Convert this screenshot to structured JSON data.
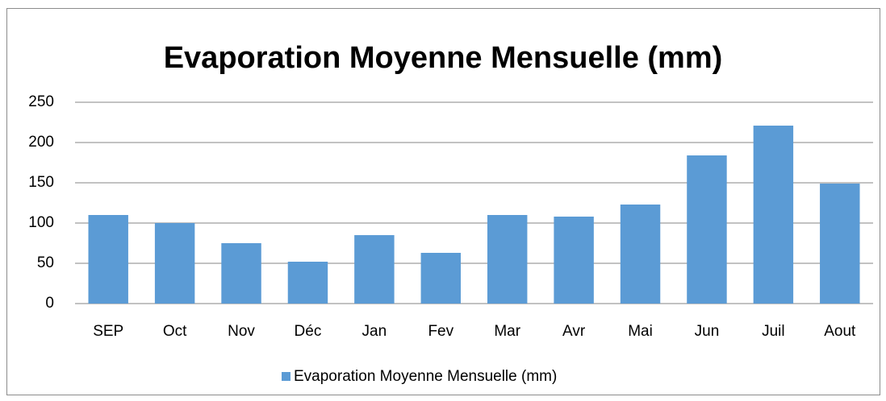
{
  "chart_data": {
    "type": "bar",
    "title": "Evaporation Moyenne Mensuelle (mm)",
    "categories": [
      "SEP",
      "Oct",
      "Nov",
      "Déc",
      "Jan",
      "Fev",
      "Mar",
      "Avr",
      "Mai",
      "Jun",
      "Juil",
      "Aout"
    ],
    "series": [
      {
        "name": "Evaporation Moyenne Mensuelle (mm)",
        "color": "#5b9bd5",
        "values": [
          110,
          100,
          75,
          52,
          85,
          63,
          110,
          108,
          123,
          184,
          221,
          149
        ]
      }
    ],
    "ylim": [
      0,
      250
    ],
    "yticks": [
      0,
      50,
      100,
      150,
      200,
      250
    ],
    "grid": true,
    "legend": "bottom"
  }
}
